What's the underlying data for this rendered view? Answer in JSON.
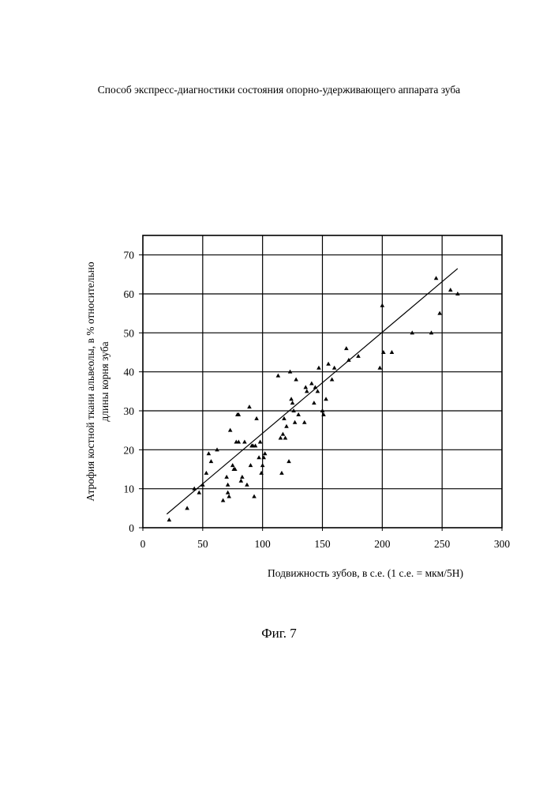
{
  "document": {
    "header": "Способ экспресс-диагностики состояния опорно-удерживающего аппарата зуба",
    "figure_caption": "Фиг. 7"
  },
  "chart_data": {
    "type": "scatter",
    "xlabel": "Подвижность зубов, в с.е. (1 с.е. = мкм/5Н)",
    "ylabel_lines": [
      "Атрофия костной ткани альвеолы, в % относительно",
      "длины корня зуба"
    ],
    "xlim": [
      0,
      300
    ],
    "ylim": [
      0,
      75
    ],
    "xticks": [
      0,
      50,
      100,
      150,
      200,
      250,
      300
    ],
    "yticks": [
      0,
      10,
      20,
      30,
      40,
      50,
      60,
      70
    ],
    "grid": true,
    "marker": "triangle",
    "points": [
      [
        22,
        2
      ],
      [
        37,
        5
      ],
      [
        43,
        10
      ],
      [
        47,
        9
      ],
      [
        50,
        11
      ],
      [
        53,
        14
      ],
      [
        55,
        19
      ],
      [
        57,
        17
      ],
      [
        62,
        20
      ],
      [
        67,
        7
      ],
      [
        70,
        13
      ],
      [
        71,
        11
      ],
      [
        71,
        9
      ],
      [
        72,
        8
      ],
      [
        73,
        25
      ],
      [
        75,
        16
      ],
      [
        76,
        15
      ],
      [
        77,
        15
      ],
      [
        78,
        22
      ],
      [
        79,
        29
      ],
      [
        80,
        29
      ],
      [
        80,
        22
      ],
      [
        82,
        12
      ],
      [
        83,
        13
      ],
      [
        85,
        22
      ],
      [
        87,
        11
      ],
      [
        89,
        31
      ],
      [
        90,
        16
      ],
      [
        91,
        21
      ],
      [
        92,
        21
      ],
      [
        93,
        8
      ],
      [
        94,
        21
      ],
      [
        95,
        28
      ],
      [
        97,
        18
      ],
      [
        98,
        22
      ],
      [
        99,
        14
      ],
      [
        100,
        16
      ],
      [
        101,
        18
      ],
      [
        102,
        19
      ],
      [
        113,
        39
      ],
      [
        115,
        23
      ],
      [
        116,
        14
      ],
      [
        117,
        24
      ],
      [
        118,
        28
      ],
      [
        119,
        23
      ],
      [
        120,
        26
      ],
      [
        122,
        17
      ],
      [
        123,
        40
      ],
      [
        124,
        33
      ],
      [
        125,
        32
      ],
      [
        126,
        30
      ],
      [
        127,
        27
      ],
      [
        128,
        38
      ],
      [
        130,
        29
      ],
      [
        135,
        27
      ],
      [
        136,
        36
      ],
      [
        137,
        35
      ],
      [
        141,
        37
      ],
      [
        143,
        32
      ],
      [
        144,
        36
      ],
      [
        146,
        35
      ],
      [
        147,
        41
      ],
      [
        150,
        30
      ],
      [
        151,
        29
      ],
      [
        153,
        33
      ],
      [
        155,
        42
      ],
      [
        158,
        38
      ],
      [
        160,
        41
      ],
      [
        170,
        46
      ],
      [
        172,
        43
      ],
      [
        180,
        44
      ],
      [
        198,
        41
      ],
      [
        200,
        57
      ],
      [
        201,
        45
      ],
      [
        208,
        45
      ],
      [
        225,
        50
      ],
      [
        241,
        50
      ],
      [
        245,
        64
      ],
      [
        248,
        55
      ],
      [
        257,
        61
      ],
      [
        263,
        60
      ]
    ],
    "trendline": {
      "x": [
        20,
        263
      ],
      "y": [
        3.5,
        66.5
      ]
    }
  }
}
